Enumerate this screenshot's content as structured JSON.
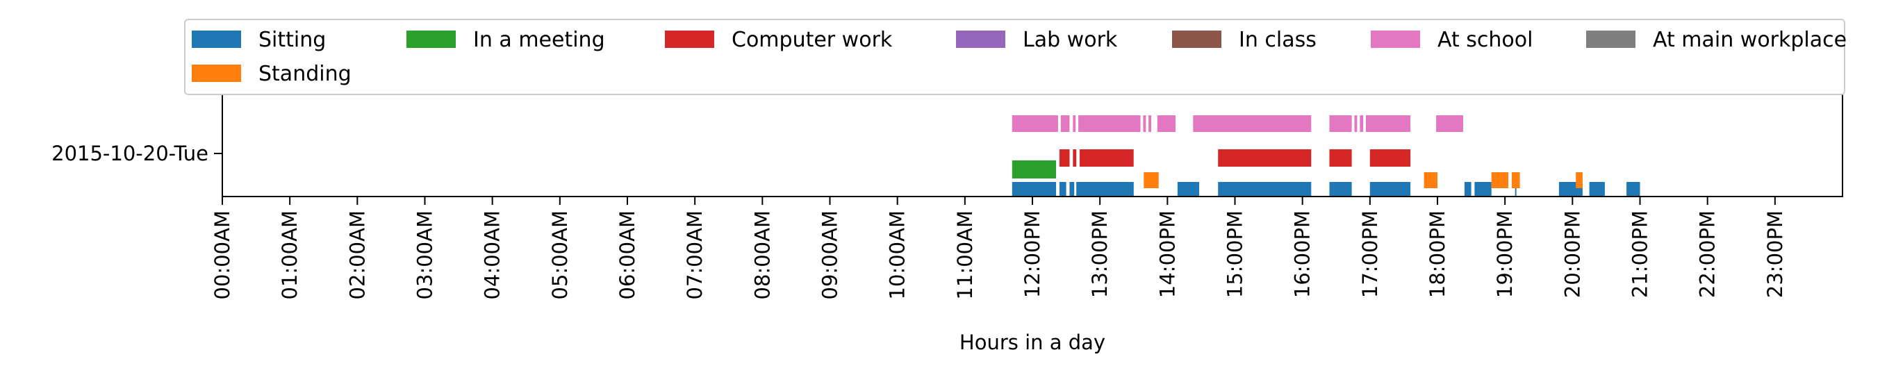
{
  "chart_data": {
    "type": "timeline",
    "title": "",
    "xlabel": "Hours in a day",
    "ylabel": "",
    "xlim": [
      0,
      24
    ],
    "x_ticks": [
      "00:00AM",
      "01:00AM",
      "02:00AM",
      "03:00AM",
      "04:00AM",
      "05:00AM",
      "06:00AM",
      "07:00AM",
      "08:00AM",
      "09:00AM",
      "10:00AM",
      "11:00AM",
      "12:00PM",
      "13:00PM",
      "14:00PM",
      "15:00PM",
      "16:00PM",
      "17:00PM",
      "18:00PM",
      "19:00PM",
      "20:00PM",
      "21:00PM",
      "22:00PM",
      "23:00PM"
    ],
    "rows": [
      "2015-10-20-Tue"
    ],
    "grid": false,
    "legend_position": "top",
    "series": [
      {
        "name": "Sitting",
        "color": "#1f77b4",
        "intervals": [
          [
            11.7,
            12.35
          ],
          [
            12.4,
            12.5
          ],
          [
            12.55,
            12.62
          ],
          [
            12.65,
            13.5
          ],
          [
            14.15,
            14.47
          ],
          [
            14.75,
            16.13
          ],
          [
            16.4,
            16.73
          ],
          [
            17.0,
            17.6
          ],
          [
            18.4,
            18.5
          ],
          [
            18.55,
            18.8
          ],
          [
            19.15,
            19.17
          ],
          [
            19.8,
            20.15
          ],
          [
            20.25,
            20.48
          ],
          [
            20.8,
            21.0
          ]
        ]
      },
      {
        "name": "Standing",
        "color": "#ff7f0e",
        "intervals": [
          [
            13.65,
            13.87
          ],
          [
            17.8,
            18.0
          ],
          [
            18.8,
            19.05
          ],
          [
            19.1,
            19.22
          ],
          [
            20.05,
            20.15
          ]
        ]
      },
      {
        "name": "In a meeting",
        "color": "#2ca02c",
        "intervals": [
          [
            11.7,
            12.35
          ]
        ]
      },
      {
        "name": "Computer work",
        "color": "#d62728",
        "intervals": [
          [
            12.4,
            12.55
          ],
          [
            12.6,
            12.65
          ],
          [
            12.7,
            13.5
          ],
          [
            14.75,
            16.13
          ],
          [
            16.4,
            16.73
          ],
          [
            17.0,
            17.6
          ]
        ]
      },
      {
        "name": "Lab work",
        "color": "#9467bd",
        "intervals": []
      },
      {
        "name": "In class",
        "color": "#8c564b",
        "intervals": []
      },
      {
        "name": "At school",
        "color": "#e377c2",
        "intervals": [
          [
            11.7,
            12.38
          ],
          [
            12.42,
            12.55
          ],
          [
            12.6,
            12.64
          ],
          [
            12.68,
            13.6
          ],
          [
            13.64,
            13.68
          ],
          [
            13.72,
            13.76
          ],
          [
            13.85,
            14.12
          ],
          [
            14.38,
            16.13
          ],
          [
            16.4,
            16.73
          ],
          [
            16.77,
            16.81
          ],
          [
            16.85,
            16.9
          ],
          [
            16.94,
            17.6
          ],
          [
            17.98,
            18.38
          ]
        ]
      },
      {
        "name": "At main workplace",
        "color": "#7f7f7f",
        "intervals": []
      }
    ]
  }
}
